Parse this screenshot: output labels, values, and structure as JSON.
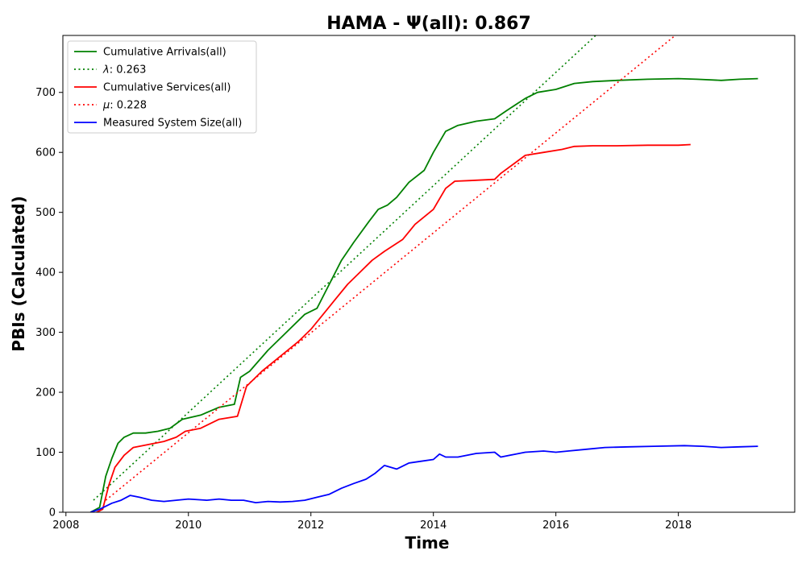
{
  "chart_data": {
    "type": "line",
    "title": "HAMA -  Ψ(all): 0.867",
    "xlabel": "Time",
    "ylabel": "PBIs (Calculated)",
    "xlim": [
      2007.95,
      2019.9
    ],
    "ylim": [
      0,
      795
    ],
    "x_ticks": [
      2008,
      2010,
      2012,
      2014,
      2016,
      2018
    ],
    "x_tick_labels": [
      "2008",
      "2010",
      "2012",
      "2014",
      "2016",
      "2018"
    ],
    "y_ticks": [
      0,
      100,
      200,
      300,
      400,
      500,
      600,
      700
    ],
    "y_tick_labels": [
      "0",
      "100",
      "200",
      "300",
      "400",
      "500",
      "600",
      "700"
    ],
    "grid": false,
    "legend_position": "upper-left",
    "series": [
      {
        "name": "Cumulative Arrivals(all)",
        "label_prefix": "",
        "label_value": "Cumulative Arrivals(all)",
        "color": "#008000",
        "style": "solid",
        "x": [
          2008.4,
          2008.55,
          2008.65,
          2008.75,
          2008.85,
          2008.95,
          2009.1,
          2009.3,
          2009.5,
          2009.7,
          2009.9,
          2010.2,
          2010.5,
          2010.75,
          2010.85,
          2011.0,
          2011.3,
          2011.6,
          2011.9,
          2012.1,
          2012.3,
          2012.5,
          2012.7,
          2012.95,
          2013.1,
          2013.25,
          2013.4,
          2013.6,
          2013.85,
          2014.0,
          2014.2,
          2014.4,
          2014.7,
          2015.0,
          2015.2,
          2015.5,
          2015.7,
          2016.0,
          2016.3,
          2016.6,
          2017.0,
          2017.5,
          2018.0,
          2018.3,
          2018.7,
          2019.0,
          2019.3
        ],
        "y": [
          0,
          8,
          60,
          90,
          115,
          125,
          132,
          132,
          135,
          140,
          155,
          162,
          175,
          180,
          225,
          235,
          270,
          300,
          330,
          340,
          380,
          420,
          450,
          485,
          505,
          512,
          525,
          550,
          570,
          600,
          635,
          645,
          652,
          656,
          670,
          690,
          700,
          705,
          715,
          718,
          720,
          722,
          723,
          722,
          720,
          722,
          723
        ]
      },
      {
        "name": "lambda-fit",
        "label_prefix": "λ",
        "label_value": ": 0.263",
        "color": "#008000",
        "style": "dotted",
        "x": [
          2008.45,
          2016.65
        ],
        "y": [
          20,
          795
        ]
      },
      {
        "name": "Cumulative Services(all)",
        "label_prefix": "",
        "label_value": "Cumulative Services(all)",
        "color": "#ff0000",
        "style": "solid",
        "x": [
          2008.5,
          2008.6,
          2008.7,
          2008.8,
          2008.95,
          2009.1,
          2009.3,
          2009.6,
          2009.8,
          2009.95,
          2010.2,
          2010.5,
          2010.8,
          2010.95,
          2011.2,
          2011.5,
          2011.8,
          2012.0,
          2012.2,
          2012.4,
          2012.6,
          2012.8,
          2013.0,
          2013.2,
          2013.5,
          2013.7,
          2014.0,
          2014.2,
          2014.35,
          2014.6,
          2015.0,
          2015.1,
          2015.3,
          2015.5,
          2015.8,
          2016.1,
          2016.3,
          2016.6,
          2017.0,
          2017.5,
          2018.0,
          2018.2
        ],
        "y": [
          0,
          5,
          45,
          75,
          95,
          108,
          112,
          118,
          125,
          135,
          140,
          155,
          160,
          210,
          235,
          260,
          285,
          305,
          330,
          355,
          380,
          400,
          420,
          435,
          455,
          480,
          505,
          540,
          552,
          553,
          555,
          565,
          580,
          595,
          600,
          605,
          610,
          611,
          611,
          612,
          612,
          613
        ]
      },
      {
        "name": "mu-fit",
        "label_prefix": "μ",
        "label_value": ": 0.228",
        "color": "#ff0000",
        "style": "dotted",
        "x": [
          2008.65,
          2017.95
        ],
        "y": [
          20,
          795
        ]
      },
      {
        "name": "Measured System Size(all)",
        "label_prefix": "",
        "label_value": "Measured System Size(all)",
        "color": "#0000ff",
        "style": "solid",
        "x": [
          2008.4,
          2008.55,
          2008.65,
          2008.75,
          2008.9,
          2009.05,
          2009.2,
          2009.4,
          2009.6,
          2009.8,
          2010.0,
          2010.3,
          2010.5,
          2010.7,
          2010.9,
          2011.1,
          2011.3,
          2011.5,
          2011.7,
          2011.9,
          2012.1,
          2012.3,
          2012.5,
          2012.7,
          2012.9,
          2013.05,
          2013.2,
          2013.4,
          2013.6,
          2013.8,
          2014.0,
          2014.1,
          2014.2,
          2014.4,
          2014.7,
          2015.0,
          2015.1,
          2015.3,
          2015.5,
          2015.8,
          2016.0,
          2016.2,
          2016.5,
          2016.8,
          2017.2,
          2017.6,
          2018.1,
          2018.4,
          2018.7,
          2019.0,
          2019.3
        ],
        "y": [
          0,
          5,
          10,
          15,
          20,
          28,
          25,
          20,
          18,
          20,
          22,
          20,
          22,
          20,
          20,
          16,
          18,
          17,
          18,
          20,
          25,
          30,
          40,
          48,
          55,
          65,
          78,
          72,
          82,
          85,
          88,
          97,
          92,
          92,
          98,
          100,
          92,
          96,
          100,
          102,
          100,
          102,
          105,
          108,
          109,
          110,
          111,
          110,
          108,
          109,
          110
        ]
      }
    ]
  }
}
